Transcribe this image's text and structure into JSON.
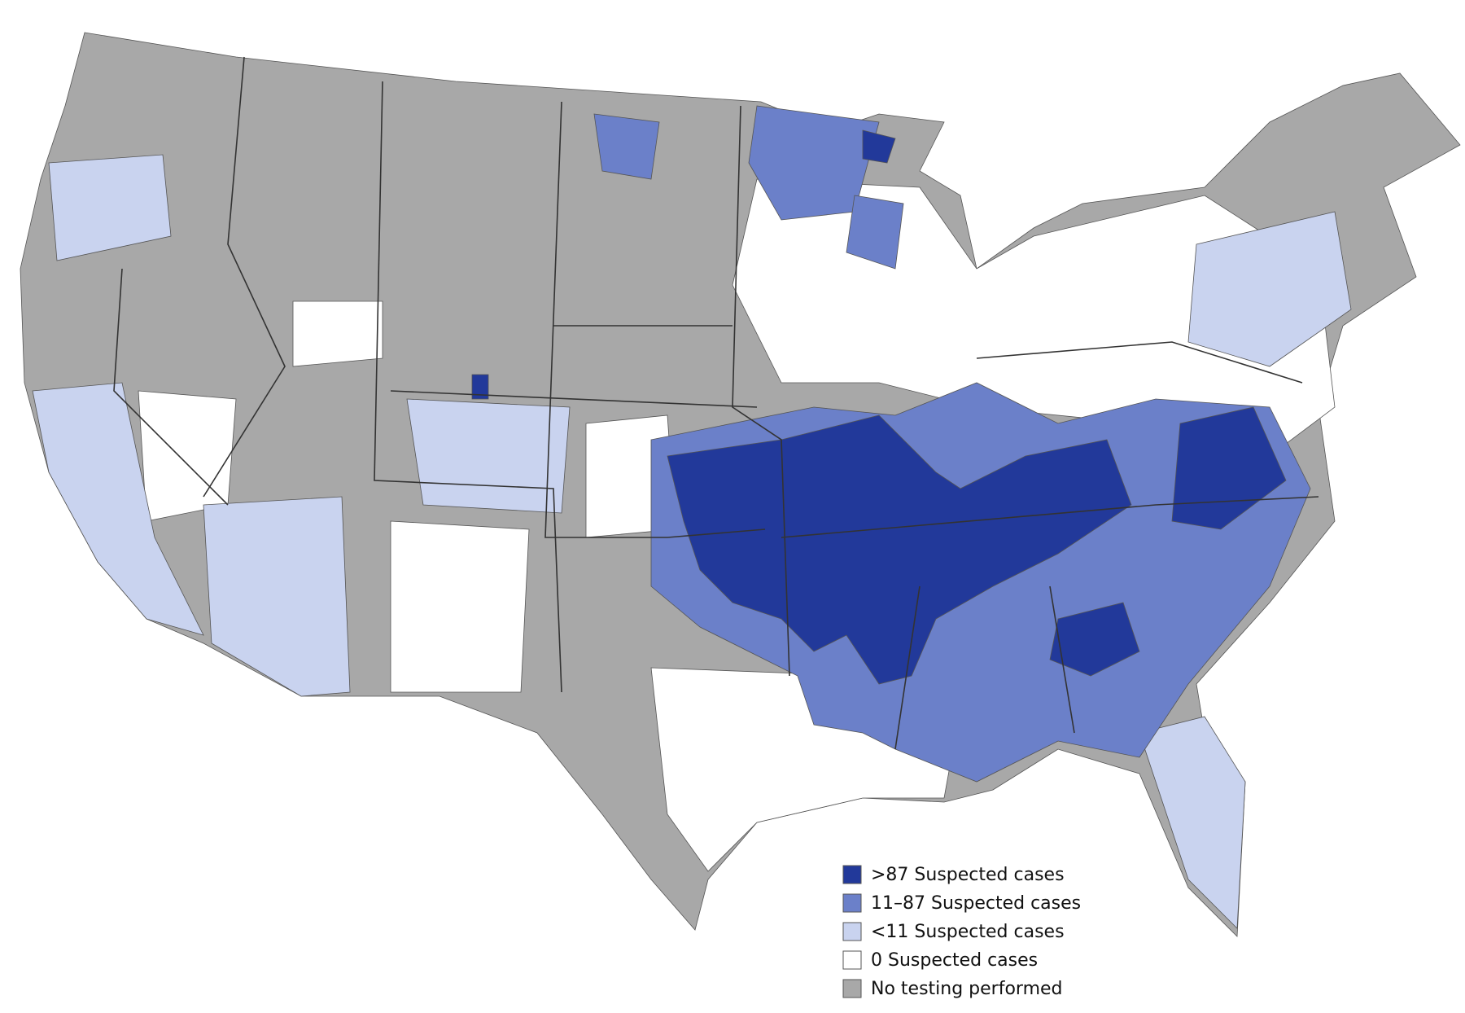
{
  "legend": {
    "items": [
      {
        "label": ">87 Suspected cases",
        "color": "#22399a"
      },
      {
        "label": "11–87 Suspected cases",
        "color": "#6b80c9"
      },
      {
        "label": "<11 Suspected cases",
        "color": "#c9d3ef"
      },
      {
        "label": "0 Suspected cases",
        "color": "#ffffff"
      },
      {
        "label": "No testing performed",
        "color": "#a8a8a8"
      }
    ]
  }
}
